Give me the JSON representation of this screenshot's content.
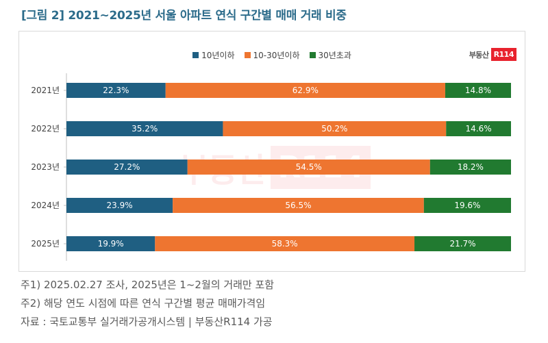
{
  "title": "[그림 2] 2021~2025년 서울 아파트 연식 구간별 매매 거래 비중",
  "logo": {
    "text": "부동산",
    "badge": "R114"
  },
  "watermark": {
    "text": "부동산",
    "badge": "R114"
  },
  "colors": {
    "title": "#2b6b8a",
    "series_0": "#1f5f82",
    "series_1": "#ee7530",
    "series_2": "#217a30",
    "logo_red": "#e8222d"
  },
  "notes": [
    "주1) 2025.02.27 조사, 2025년은 1~2월의 거래만 포함",
    "주2) 해당 연도 시점에 따른 연식 구간별 평균 매매가격임",
    "자료 : 국토교통부 실거래가공개시스템 | 부동산R114 가공"
  ],
  "chart_data": {
    "type": "bar",
    "orientation": "horizontal",
    "stacked": "100%",
    "categories": [
      "2021년",
      "2022년",
      "2023년",
      "2024년",
      "2025년"
    ],
    "series": [
      {
        "name": "10년이하",
        "color": "#1f5f82",
        "values": [
          22.3,
          35.2,
          27.2,
          23.9,
          19.9
        ],
        "labels": [
          "22.3%",
          "35.2%",
          "27.2%",
          "23.9%",
          "19.9%"
        ]
      },
      {
        "name": "10-30년이하",
        "color": "#ee7530",
        "values": [
          62.9,
          50.2,
          54.5,
          56.5,
          58.3
        ],
        "labels": [
          "62.9%",
          "50.2%",
          "54.5%",
          "56.5%",
          "58.3%"
        ]
      },
      {
        "name": "30년초과",
        "color": "#217a30",
        "values": [
          14.8,
          14.6,
          18.2,
          19.6,
          21.7
        ],
        "labels": [
          "14.8%",
          "14.6%",
          "18.2%",
          "19.6%",
          "21.7%"
        ]
      }
    ],
    "legend": "top-center",
    "grid": false
  }
}
